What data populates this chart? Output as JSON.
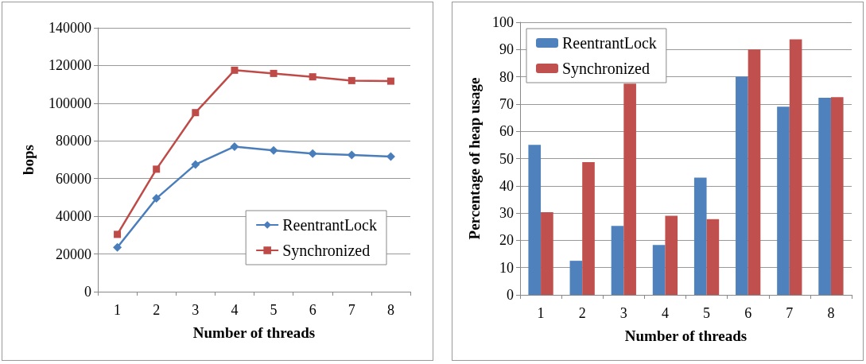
{
  "chart_data": [
    {
      "type": "line",
      "xlabel": "Number of threads",
      "ylabel": "bops",
      "categories": [
        "1",
        "2",
        "3",
        "4",
        "5",
        "6",
        "7",
        "8"
      ],
      "ylim": [
        0,
        140000
      ],
      "yticks": [
        0,
        20000,
        40000,
        60000,
        80000,
        100000,
        120000,
        140000
      ],
      "grid": "y",
      "legend": "bottom right",
      "series": [
        {
          "name": "ReentrantLock",
          "color": "#4a7ebb",
          "marker": "diamond",
          "values": [
            23500,
            49500,
            67500,
            77000,
            75000,
            73300,
            72500,
            71700
          ]
        },
        {
          "name": "Synchronized",
          "color": "#be4b48",
          "marker": "square",
          "values": [
            30400,
            65000,
            95000,
            117500,
            115800,
            114000,
            112000,
            111700
          ]
        }
      ]
    },
    {
      "type": "bar",
      "xlabel": "Number of threads",
      "ylabel": "Percentage of heap usage",
      "categories": [
        "1",
        "2",
        "3",
        "4",
        "5",
        "6",
        "7",
        "8"
      ],
      "ylim": [
        0,
        100
      ],
      "yticks": [
        0,
        10,
        20,
        30,
        40,
        50,
        60,
        70,
        80,
        90,
        100
      ],
      "grid": "y",
      "legend": "top left",
      "series": [
        {
          "name": "ReentrantLock",
          "color": "#4f81bd",
          "values": [
            55,
            12.5,
            25.3,
            18.3,
            43,
            80,
            69,
            72.3
          ]
        },
        {
          "name": "Synchronized",
          "color": "#c0504d",
          "values": [
            30.3,
            48.7,
            77.5,
            29,
            27.8,
            90,
            93.7,
            72.5
          ]
        }
      ]
    }
  ]
}
